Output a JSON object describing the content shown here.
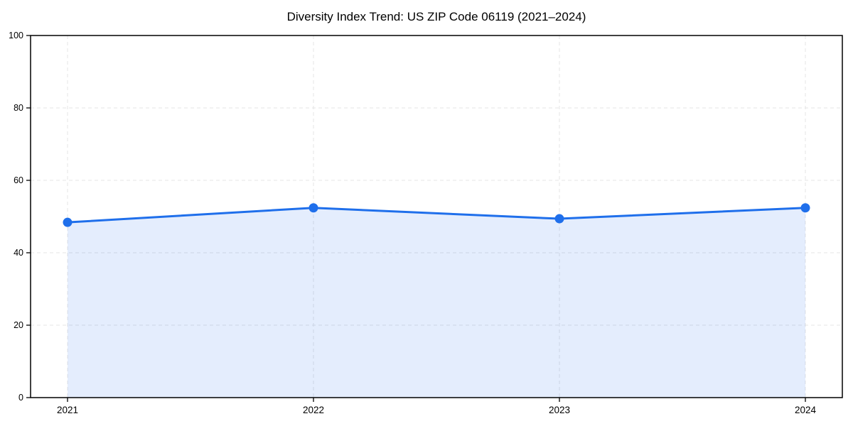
{
  "chart_data": {
    "type": "area",
    "title": "Diversity Index Trend: US ZIP Code 06119 (2021–2024)",
    "categories": [
      "2021",
      "2022",
      "2023",
      "2024"
    ],
    "values": [
      48.4,
      52.4,
      49.4,
      52.4
    ],
    "xlabel": "",
    "ylabel": "",
    "ylim": [
      0,
      100
    ],
    "yticks": [
      0,
      20,
      40,
      60,
      80,
      100
    ],
    "grid": "dashed both axes",
    "legend_position": "none",
    "colors": {
      "line": "#1f6feb",
      "marker": "#1f6feb",
      "area_fill": "rgba(31,111,235,0.12)",
      "grid": "#e4e4e4",
      "spine": "#000000",
      "background": "#ffffff"
    }
  }
}
